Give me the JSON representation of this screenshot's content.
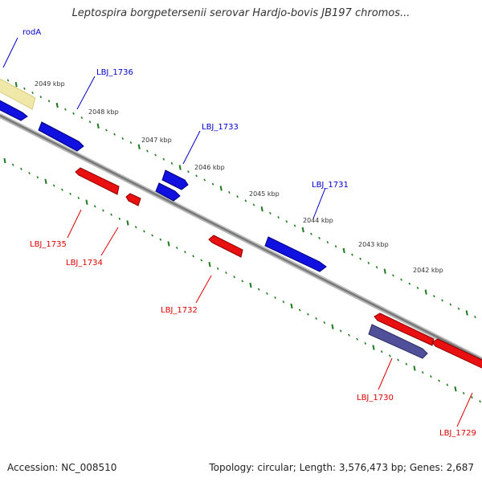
{
  "title": "Leptospira borgpetersenii serovar Hardjo-bovis JB197 chromos...",
  "footer": {
    "accession": "Accession: NC_008510",
    "summary": "Topology: circular; Length: 3,576,473 bp; Genes: 2,687"
  },
  "scale": {
    "unit": "kbp",
    "ticks": [
      "2049 kbp",
      "2048 kbp",
      "2047 kbp",
      "2046 kbp",
      "2045 kbp",
      "2044 kbp",
      "2043 kbp",
      "2042 kbp"
    ]
  },
  "colors": {
    "forward_gene": "#1010e0",
    "reverse_gene": "#e81010",
    "highlight_gene": "#50509a",
    "rrna_feature": "#f0e8a8",
    "backbone": "#808080",
    "tick": "#1e7a1e",
    "forward_label": "#0000cc",
    "reverse_label": "#dd0000"
  },
  "genes": {
    "forward": [
      "rodA",
      "LBJ_1736",
      "LBJ_1733",
      "LBJ_1731"
    ],
    "reverse": [
      "LBJ_1735",
      "LBJ_1734",
      "LBJ_1732",
      "LBJ_1730",
      "LBJ_1729"
    ]
  }
}
